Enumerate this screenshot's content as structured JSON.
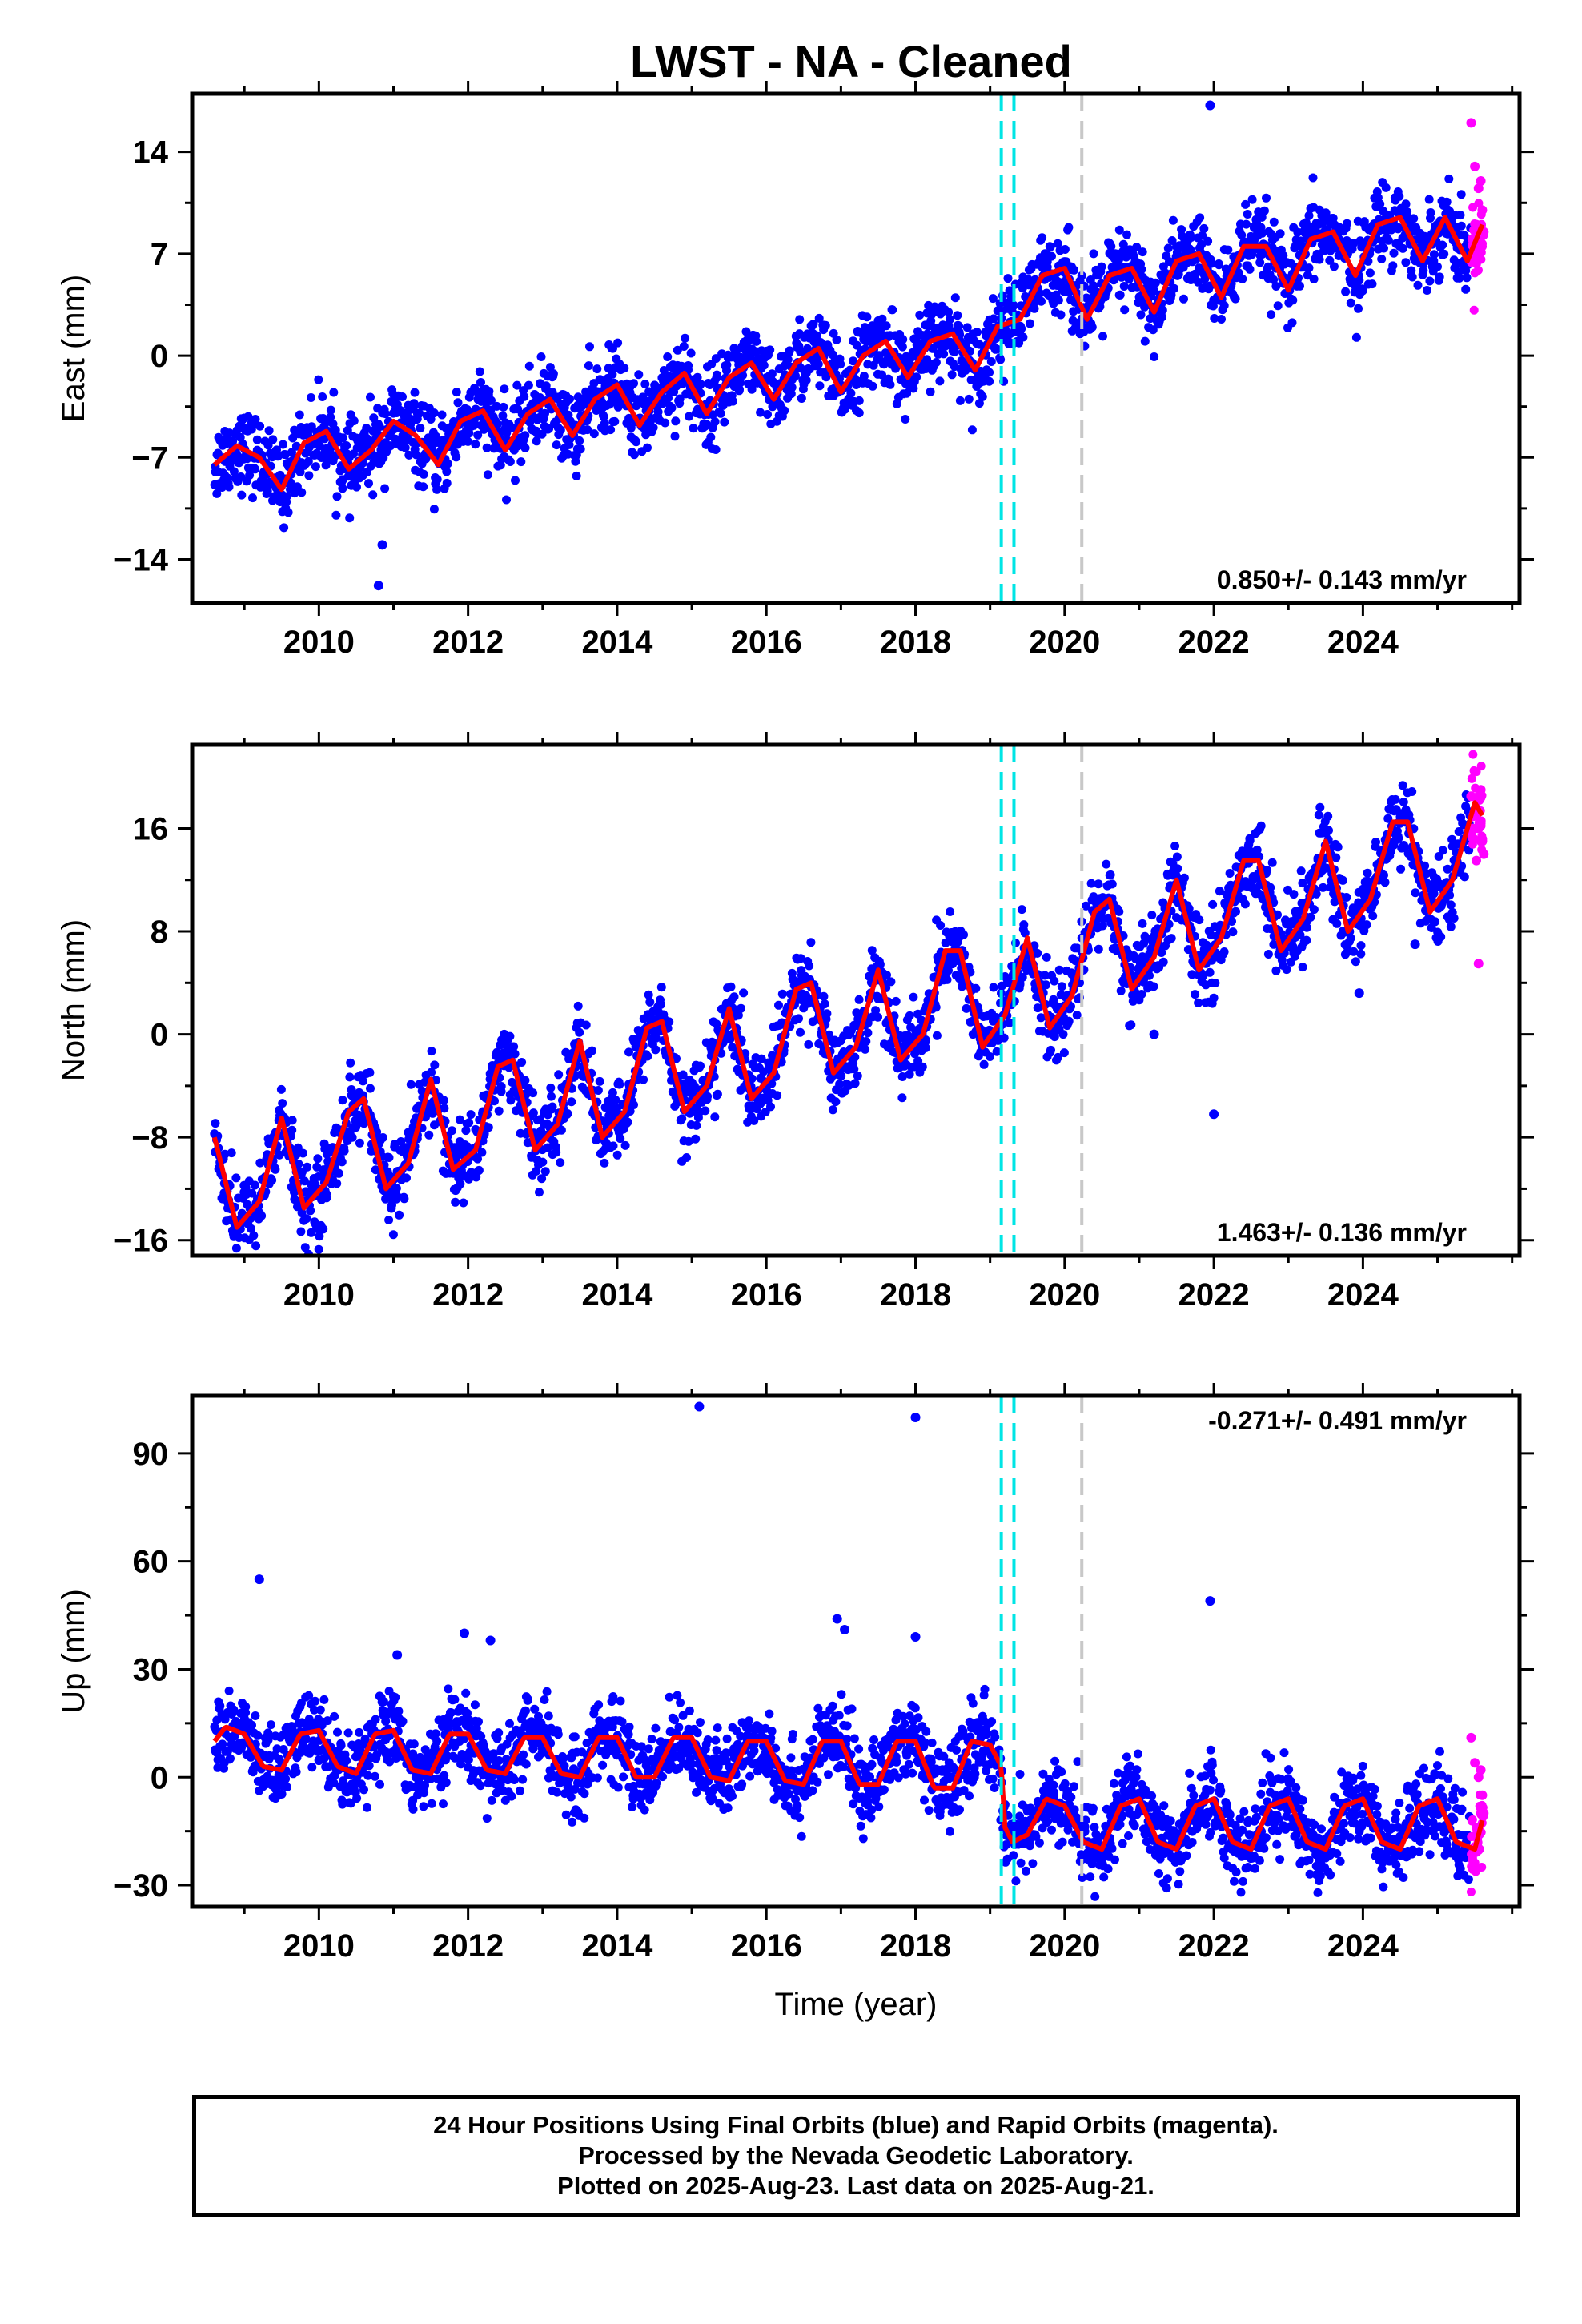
{
  "title": "LWST  - NA - Cleaned",
  "footer": {
    "line1": "24 Hour Positions Using Final Orbits (blue) and Rapid Orbits (magenta).",
    "line2": "Processed by the Nevada Geodetic Laboratory.",
    "line3": "Plotted on 2025-Aug-23. Last data on 2025-Aug-21."
  },
  "colors": {
    "final": "#0000ff",
    "rapid": "#ff00ff",
    "model": "#ff0000",
    "cyan_line": "#00e5e5",
    "gray_line": "#c8c8c8"
  },
  "chart_data": [
    {
      "type": "scatter",
      "name": "east",
      "ylabel": "East (mm)",
      "xlabel": "",
      "xlim": [
        2008.3,
        2026.1
      ],
      "ylim": [
        -17,
        18
      ],
      "xticks": [
        2010,
        2012,
        2014,
        2016,
        2018,
        2020,
        2022,
        2024
      ],
      "yticks": [
        -14,
        -7,
        0,
        7,
        14
      ],
      "rate_label": "0.850+/- 0.143 mm/yr",
      "rate_position": "bottom-right",
      "grid": false,
      "offset_lines": [
        {
          "x": 2019.15,
          "style": "dashed",
          "color": "cyan"
        },
        {
          "x": 2019.32,
          "style": "dashed",
          "color": "cyan"
        },
        {
          "x": 2020.23,
          "style": "dashed",
          "color": "gray"
        }
      ],
      "model_curve": {
        "x": [
          2008.6,
          2008.9,
          2009.2,
          2009.5,
          2009.8,
          2010.1,
          2010.4,
          2010.7,
          2011.0,
          2011.3,
          2011.6,
          2011.9,
          2012.2,
          2012.5,
          2012.8,
          2013.1,
          2013.4,
          2013.7,
          2014.0,
          2014.3,
          2014.6,
          2014.9,
          2015.2,
          2015.5,
          2015.8,
          2016.1,
          2016.4,
          2016.7,
          2017.0,
          2017.3,
          2017.6,
          2017.9,
          2018.2,
          2018.5,
          2018.8,
          2019.1,
          2019.4,
          2019.7,
          2020.0,
          2020.3,
          2020.6,
          2020.9,
          2021.2,
          2021.5,
          2021.8,
          2022.1,
          2022.4,
          2022.7,
          2023.0,
          2023.3,
          2023.6,
          2023.9,
          2024.2,
          2024.5,
          2024.8,
          2025.1,
          2025.4,
          2025.6
        ],
        "y": [
          -7.5,
          -6.2,
          -7.0,
          -9.2,
          -6.0,
          -5.2,
          -7.8,
          -6.5,
          -4.5,
          -5.5,
          -7.5,
          -4.5,
          -3.8,
          -6.5,
          -4.0,
          -3.0,
          -5.5,
          -3.0,
          -2.0,
          -4.8,
          -2.5,
          -1.2,
          -4.0,
          -1.5,
          -0.5,
          -3.0,
          -0.5,
          0.5,
          -2.5,
          0.0,
          1.0,
          -1.5,
          1.0,
          1.5,
          -1.0,
          2.0,
          2.5,
          5.5,
          6.0,
          2.5,
          5.5,
          6.0,
          3.0,
          6.5,
          7.0,
          4.0,
          7.5,
          7.5,
          4.5,
          8.0,
          8.5,
          5.5,
          9.0,
          9.5,
          6.5,
          9.5,
          6.5,
          9.0
        ]
      },
      "rapid_points": {
        "x": [
          2025.45,
          2025.5,
          2025.55,
          2025.6,
          2025.62,
          2025.58,
          2025.52,
          2025.48
        ],
        "y": [
          16.0,
          13.0,
          11.5,
          10.0,
          8.5,
          12.0,
          9.0,
          7.5
        ]
      },
      "outliers": {
        "x": [
          2010.8,
          2010.85,
          2021.95
        ],
        "y": [
          -15.8,
          -13.0,
          17.2
        ]
      }
    },
    {
      "type": "scatter",
      "name": "north",
      "ylabel": "North (mm)",
      "xlabel": "",
      "xlim": [
        2008.3,
        2026.1
      ],
      "ylim": [
        -17.2,
        22.5
      ],
      "xticks": [
        2010,
        2012,
        2014,
        2016,
        2018,
        2020,
        2022,
        2024
      ],
      "yticks": [
        -16,
        -8,
        0,
        8,
        16
      ],
      "rate_label": "1.463+/- 0.136 mm/yr",
      "rate_position": "bottom-right",
      "grid": false,
      "offset_lines": [
        {
          "x": 2019.15,
          "style": "dashed",
          "color": "cyan"
        },
        {
          "x": 2019.32,
          "style": "dashed",
          "color": "cyan"
        },
        {
          "x": 2020.23,
          "style": "dashed",
          "color": "gray"
        }
      ],
      "model_curve": {
        "x": [
          2008.6,
          2008.9,
          2009.2,
          2009.5,
          2009.8,
          2010.1,
          2010.4,
          2010.6,
          2010.9,
          2011.2,
          2011.5,
          2011.8,
          2012.1,
          2012.4,
          2012.6,
          2012.9,
          2013.2,
          2013.5,
          2013.8,
          2014.1,
          2014.4,
          2014.6,
          2014.9,
          2015.2,
          2015.5,
          2015.8,
          2016.1,
          2016.4,
          2016.6,
          2016.9,
          2017.2,
          2017.5,
          2017.8,
          2018.1,
          2018.4,
          2018.6,
          2018.9,
          2019.2,
          2019.5,
          2019.8,
          2020.1,
          2020.4,
          2020.6,
          2020.9,
          2021.2,
          2021.5,
          2021.8,
          2022.1,
          2022.4,
          2022.6,
          2022.9,
          2023.2,
          2023.5,
          2023.8,
          2024.1,
          2024.4,
          2024.6,
          2024.9,
          2025.2,
          2025.5,
          2025.6
        ],
        "y": [
          -8.0,
          -15.0,
          -13.0,
          -6.5,
          -13.5,
          -11.5,
          -6.0,
          -5.0,
          -12.0,
          -10.0,
          -3.5,
          -10.5,
          -9.0,
          -2.5,
          -2.0,
          -9.0,
          -7.0,
          -0.5,
          -8.0,
          -6.0,
          0.5,
          1.0,
          -6.0,
          -4.0,
          2.0,
          -5.0,
          -3.0,
          3.5,
          4.0,
          -3.0,
          -1.0,
          5.0,
          -2.0,
          0.0,
          6.5,
          6.5,
          -1.0,
          1.5,
          7.5,
          0.5,
          3.0,
          9.5,
          10.5,
          3.5,
          6.0,
          12.0,
          5.0,
          7.5,
          13.5,
          13.5,
          6.5,
          9.0,
          15.0,
          8.0,
          10.5,
          16.5,
          16.5,
          9.5,
          12.0,
          18.0,
          17.0
        ]
      },
      "rapid_points": {
        "x": [
          2025.45,
          2025.5,
          2025.55,
          2025.6,
          2025.62,
          2025.58,
          2025.52,
          2025.55
        ],
        "y": [
          18.5,
          17.0,
          16.0,
          15.0,
          14.0,
          19.0,
          13.5,
          5.5
        ]
      },
      "outliers": {
        "x": [
          2021.2,
          2022.0,
          2023.95,
          2024.7
        ],
        "y": [
          0.0,
          -6.2,
          3.2,
          7.0
        ]
      }
    },
    {
      "type": "scatter",
      "name": "up",
      "ylabel": "Up (mm)",
      "xlabel": "Time (year)",
      "xlim": [
        2008.3,
        2026.1
      ],
      "ylim": [
        -36,
        106
      ],
      "xticks": [
        2010,
        2012,
        2014,
        2016,
        2018,
        2020,
        2022,
        2024
      ],
      "yticks": [
        -30,
        0,
        30,
        60,
        90
      ],
      "rate_label": "-0.271+/- 0.491 mm/yr",
      "rate_position": "top-right",
      "grid": false,
      "offset_lines": [
        {
          "x": 2019.15,
          "style": "dashed",
          "color": "cyan"
        },
        {
          "x": 2019.32,
          "style": "dashed",
          "color": "cyan"
        },
        {
          "x": 2020.23,
          "style": "dashed",
          "color": "gray"
        }
      ],
      "model_curve": {
        "x": [
          2008.6,
          2008.75,
          2009.0,
          2009.25,
          2009.5,
          2009.75,
          2010.0,
          2010.25,
          2010.5,
          2010.75,
          2011.0,
          2011.25,
          2011.5,
          2011.75,
          2012.0,
          2012.25,
          2012.5,
          2012.75,
          2013.0,
          2013.25,
          2013.5,
          2013.75,
          2014.0,
          2014.25,
          2014.5,
          2014.75,
          2015.0,
          2015.25,
          2015.5,
          2015.75,
          2016.0,
          2016.25,
          2016.5,
          2016.75,
          2017.0,
          2017.25,
          2017.5,
          2017.75,
          2018.0,
          2018.25,
          2018.5,
          2018.75,
          2019.0,
          2019.15,
          2019.2,
          2019.3,
          2019.5,
          2019.75,
          2020.0,
          2020.25,
          2020.5,
          2020.75,
          2021.0,
          2021.25,
          2021.5,
          2021.75,
          2022.0,
          2022.25,
          2022.5,
          2022.75,
          2023.0,
          2023.25,
          2023.5,
          2023.75,
          2024.0,
          2024.25,
          2024.5,
          2024.75,
          2025.0,
          2025.25,
          2025.5,
          2025.6
        ],
        "y": [
          10,
          14,
          12,
          3,
          2,
          12,
          13,
          3,
          1,
          12,
          13,
          2,
          1,
          12,
          12,
          2,
          1,
          11,
          11,
          1,
          0,
          11,
          11,
          0,
          0,
          11,
          11,
          0,
          -1,
          10,
          10,
          -1,
          -2,
          10,
          10,
          -2,
          -2,
          10,
          10,
          -3,
          -3,
          10,
          9,
          3,
          -14,
          -18,
          -16,
          -6,
          -8,
          -18,
          -20,
          -8,
          -6,
          -18,
          -20,
          -8,
          -6,
          -18,
          -20,
          -8,
          -6,
          -18,
          -20,
          -8,
          -6,
          -18,
          -20,
          -8,
          -6,
          -18,
          -20,
          -12
        ]
      },
      "rapid_points": {
        "x": [
          2025.45,
          2025.5,
          2025.55,
          2025.6,
          2025.62,
          2025.58,
          2025.52
        ],
        "y": [
          11.0,
          4.0,
          0.0,
          -5.0,
          -10.0,
          2.0,
          -14.0
        ]
      },
      "outliers": {
        "x": [
          2009.2,
          2011.05,
          2011.95,
          2012.3,
          2015.1,
          2016.95,
          2017.05,
          2018.0,
          2018.0,
          2021.95
        ],
        "y": [
          55,
          34,
          40,
          38,
          103,
          44,
          41,
          100,
          39,
          49
        ]
      }
    }
  ]
}
